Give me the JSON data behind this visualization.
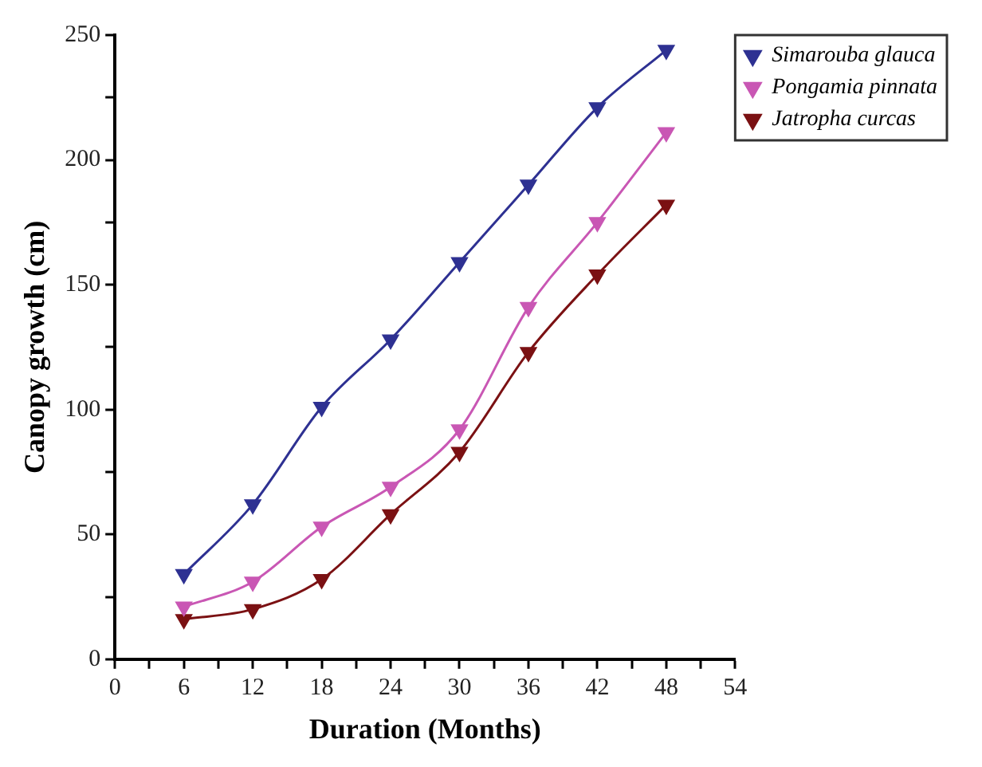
{
  "chart_data": {
    "type": "line",
    "xlabel": "Duration (Months)",
    "ylabel": "Canopy growth (cm)",
    "x": [
      6,
      12,
      18,
      24,
      30,
      36,
      42,
      48
    ],
    "series": [
      {
        "name": "Simarouba glauca",
        "color": "#2e3192",
        "values": [
          34,
          62,
          101,
          128,
          159,
          190,
          221,
          244
        ]
      },
      {
        "name": "Pongamia pinnata",
        "color": "#c957b4",
        "values": [
          21,
          31,
          53,
          69,
          92,
          141,
          175,
          211
        ]
      },
      {
        "name": "Jatropha curcas",
        "color": "#7b1113",
        "values": [
          16,
          20,
          32,
          58,
          83,
          123,
          154,
          182
        ]
      }
    ],
    "xlim": [
      0,
      54
    ],
    "xticks": [
      0,
      {
        "value": 3,
        "label": null
      },
      6,
      {
        "value": 9,
        "label": null
      },
      12,
      {
        "value": 15,
        "label": null
      },
      18,
      {
        "value": 21,
        "label": null
      },
      24,
      {
        "value": 27,
        "label": null
      },
      30,
      {
        "value": 33,
        "label": null
      },
      36,
      {
        "value": 39,
        "label": null
      },
      42,
      {
        "value": 45,
        "label": null
      },
      48,
      {
        "value": 51,
        "label": null
      },
      54
    ],
    "ylim": [
      0,
      250
    ],
    "yticks": [
      0,
      {
        "value": 25,
        "label": null
      },
      50,
      {
        "value": 75,
        "label": null
      },
      100,
      {
        "value": 125,
        "label": null
      },
      150,
      {
        "value": 175,
        "label": null
      },
      200,
      {
        "value": 225,
        "label": null
      },
      250
    ],
    "grid": false,
    "legend": "right",
    "marker": "triangle",
    "line_style": "solid"
  }
}
